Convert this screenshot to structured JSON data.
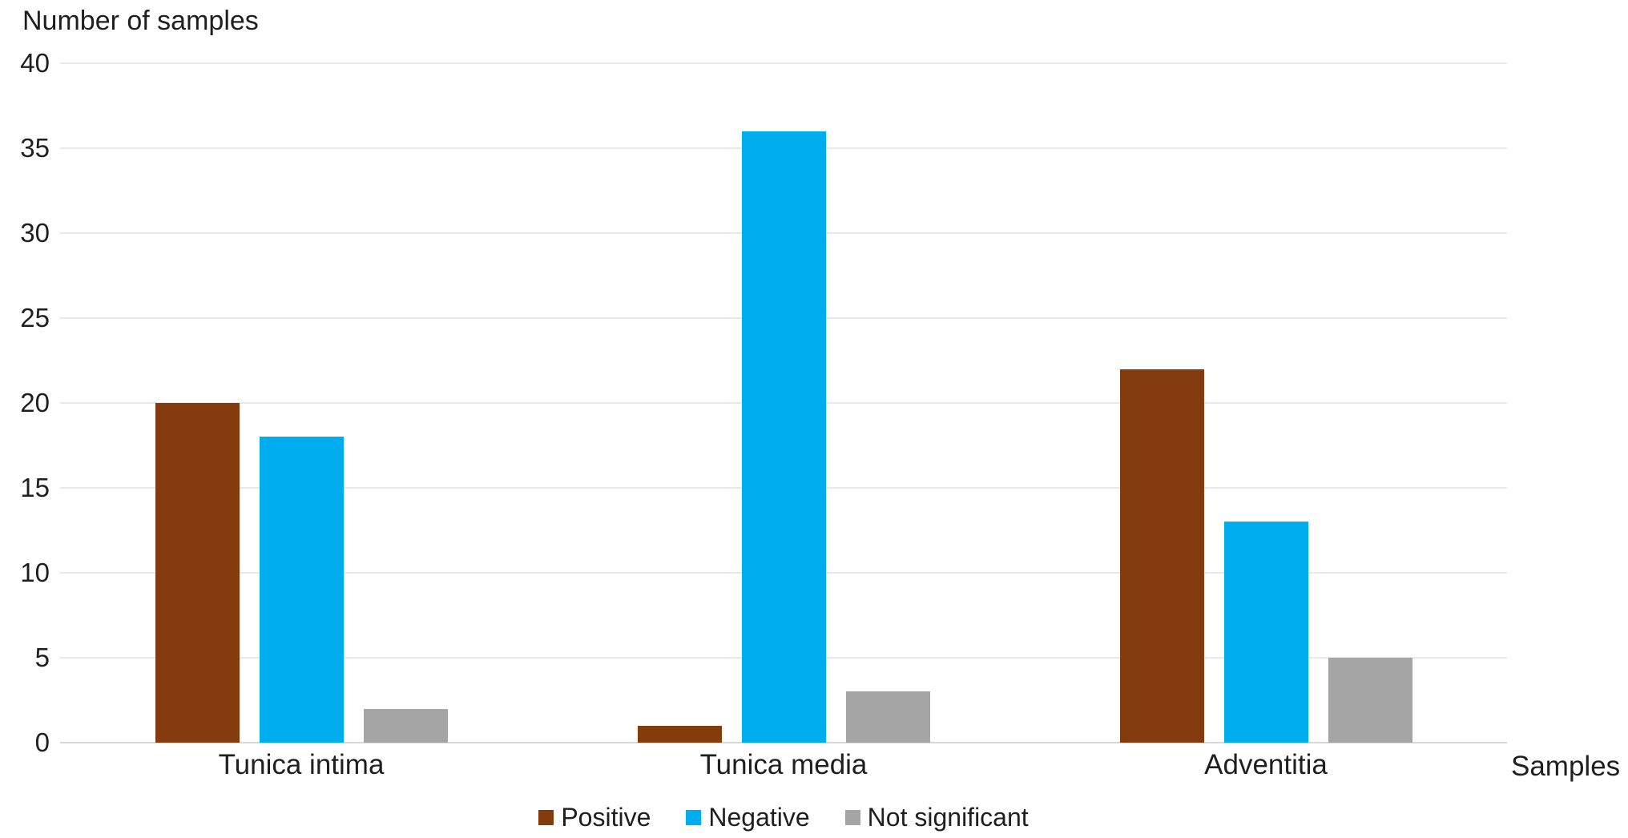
{
  "chart_title": "Number of samples",
  "x_axis_title": "Samples",
  "chart_data": {
    "type": "bar",
    "title": "Number of samples",
    "xlabel": "Samples",
    "ylabel": "Number of samples",
    "categories": [
      "Tunica intima",
      "Tunica media",
      "Adventitia"
    ],
    "series": [
      {
        "name": "Positive",
        "color": "#843C0E",
        "values": [
          20,
          1,
          22
        ]
      },
      {
        "name": "Negative",
        "color": "#00AEEF",
        "values": [
          18,
          36,
          13
        ]
      },
      {
        "name": "Not significant",
        "color": "#A5A5A5",
        "values": [
          2,
          3,
          5
        ]
      }
    ],
    "ylim": [
      0,
      40
    ],
    "yticks": [
      0,
      5,
      10,
      15,
      20,
      25,
      30,
      35,
      40
    ],
    "grid": true,
    "legend_position": "bottom",
    "gridline_color": "#e9e9e9",
    "axis_line_color": "#d8d8d8",
    "text_color": "#1f1f1f",
    "background_color": "#ffffff"
  }
}
